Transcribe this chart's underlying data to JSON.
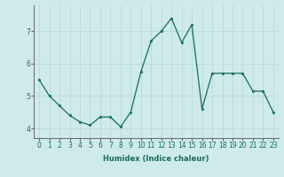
{
  "x": [
    0,
    1,
    2,
    3,
    4,
    5,
    6,
    7,
    8,
    9,
    10,
    11,
    12,
    13,
    14,
    15,
    16,
    17,
    18,
    19,
    20,
    21,
    22,
    23
  ],
  "y": [
    5.5,
    5.0,
    4.7,
    4.4,
    4.2,
    4.1,
    4.35,
    4.35,
    4.05,
    4.5,
    5.75,
    6.7,
    7.0,
    7.4,
    6.65,
    7.2,
    4.6,
    5.7,
    5.7,
    5.7,
    5.7,
    5.15,
    5.15,
    4.5
  ],
  "line_color": "#1a6b5a",
  "marker": "D",
  "marker_size": 1.5,
  "background_color": "#ceeaea",
  "grid_color": "#b8d4d4",
  "xlabel": "Humidex (Indice chaleur)",
  "xlabel_fontsize": 6,
  "ylabel_ticks": [
    4,
    5,
    6,
    7
  ],
  "xlim": [
    -0.5,
    23.5
  ],
  "ylim": [
    3.7,
    7.8
  ],
  "tick_fontsize": 5.5,
  "line_width": 0.9
}
